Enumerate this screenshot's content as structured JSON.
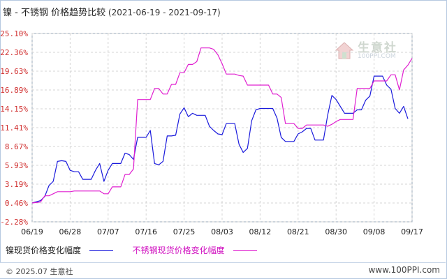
{
  "title": {
    "main": "镍 - 不锈钢 价格趋势比较",
    "range": "(2021-06-19 - 2021-09-17)"
  },
  "watermark": {
    "brand": "生意社",
    "url": "100PPI.COM"
  },
  "legend": [
    {
      "name": "镍现货价格变化幅度",
      "color": "#1a1adc"
    },
    {
      "name": "不锈钢现货价格变化幅度",
      "color": "#e020d0"
    }
  ],
  "footer": {
    "copyright": "© 2025.07 生意社",
    "url": "www.100PPI.com"
  },
  "chart_data": {
    "type": "line",
    "ylim": [
      -2.28,
      25.1
    ],
    "yticks": [
      "25.10%",
      "22.36%",
      "19.63%",
      "16.89%",
      "14.15%",
      "11.41%",
      "8.67%",
      "5.93%",
      "3.19%",
      "0.46%",
      "-2.28%"
    ],
    "ytick_values": [
      25.1,
      22.36,
      19.63,
      16.89,
      14.15,
      11.41,
      8.67,
      5.93,
      3.19,
      0.46,
      -2.28
    ],
    "xticks": [
      "06/19",
      "06/28",
      "07/07",
      "07/16",
      "07/25",
      "08/03",
      "08/12",
      "08/21",
      "08/30",
      "09/08",
      "09/17"
    ],
    "xlim_days": [
      0,
      90
    ],
    "grid": true,
    "series": [
      {
        "name": "镍现货价格变化幅度",
        "color": "#1a1adc",
        "points": [
          [
            0,
            0.46
          ],
          [
            2,
            0.8
          ],
          [
            3,
            1.4
          ],
          [
            4,
            3.0
          ],
          [
            5,
            3.6
          ],
          [
            6,
            6.5
          ],
          [
            7,
            6.6
          ],
          [
            8,
            6.5
          ],
          [
            9,
            5.2
          ],
          [
            10,
            5.0
          ],
          [
            11,
            5.0
          ],
          [
            12,
            3.9
          ],
          [
            13,
            3.9
          ],
          [
            14,
            3.9
          ],
          [
            15,
            5.2
          ],
          [
            16,
            6.2
          ],
          [
            17,
            3.6
          ],
          [
            18,
            5.2
          ],
          [
            19,
            6.2
          ],
          [
            20,
            6.2
          ],
          [
            21,
            6.2
          ],
          [
            22,
            7.7
          ],
          [
            23,
            7.5
          ],
          [
            24,
            6.8
          ],
          [
            25,
            10.0
          ],
          [
            26,
            10.0
          ],
          [
            27,
            10.0
          ],
          [
            28,
            11.0
          ],
          [
            29,
            6.2
          ],
          [
            30,
            6.0
          ],
          [
            31,
            6.5
          ],
          [
            32,
            10.2
          ],
          [
            33,
            10.2
          ],
          [
            34,
            10.3
          ],
          [
            35,
            13.4
          ],
          [
            36,
            14.3
          ],
          [
            37,
            13.0
          ],
          [
            38,
            13.5
          ],
          [
            39,
            13.2
          ],
          [
            40,
            13.2
          ],
          [
            41,
            13.2
          ],
          [
            42,
            11.6
          ],
          [
            43,
            11.0
          ],
          [
            44,
            10.5
          ],
          [
            45,
            10.4
          ],
          [
            46,
            12.0
          ],
          [
            47,
            12.0
          ],
          [
            48,
            12.0
          ],
          [
            49,
            9.0
          ],
          [
            50,
            7.8
          ],
          [
            51,
            8.4
          ],
          [
            52,
            12.4
          ],
          [
            53,
            14.0
          ],
          [
            54,
            14.2
          ],
          [
            55,
            14.2
          ],
          [
            56,
            14.2
          ],
          [
            57,
            14.2
          ],
          [
            58,
            12.8
          ],
          [
            59,
            10.0
          ],
          [
            60,
            9.4
          ],
          [
            61,
            9.4
          ],
          [
            62,
            9.4
          ],
          [
            63,
            10.5
          ],
          [
            64,
            10.8
          ],
          [
            65,
            11.3
          ],
          [
            66,
            11.3
          ],
          [
            67,
            9.6
          ],
          [
            68,
            9.6
          ],
          [
            69,
            9.6
          ],
          [
            70,
            13.2
          ],
          [
            71,
            16.1
          ],
          [
            72,
            15.5
          ],
          [
            73,
            14.5
          ],
          [
            74,
            13.5
          ],
          [
            75,
            13.5
          ],
          [
            76,
            13.5
          ],
          [
            77,
            14.0
          ],
          [
            78,
            14.0
          ],
          [
            79,
            15.4
          ],
          [
            80,
            16.0
          ],
          [
            81,
            18.9
          ],
          [
            82,
            18.9
          ],
          [
            83,
            18.9
          ],
          [
            84,
            17.6
          ],
          [
            85,
            17.0
          ],
          [
            86,
            14.2
          ],
          [
            87,
            13.5
          ],
          [
            88,
            14.5
          ],
          [
            89,
            12.7
          ]
        ]
      },
      {
        "name": "不锈钢现货价格变化幅度",
        "color": "#e020d0",
        "points": [
          [
            0,
            0.46
          ],
          [
            2,
            0.6
          ],
          [
            3,
            1.5
          ],
          [
            4,
            1.5
          ],
          [
            5,
            1.8
          ],
          [
            6,
            2.1
          ],
          [
            7,
            2.1
          ],
          [
            8,
            2.1
          ],
          [
            9,
            2.1
          ],
          [
            10,
            2.2
          ],
          [
            11,
            2.2
          ],
          [
            12,
            2.2
          ],
          [
            13,
            2.2
          ],
          [
            14,
            2.2
          ],
          [
            15,
            2.2
          ],
          [
            16,
            2.2
          ],
          [
            17,
            1.8
          ],
          [
            18,
            1.8
          ],
          [
            19,
            2.8
          ],
          [
            20,
            2.8
          ],
          [
            21,
            2.8
          ],
          [
            22,
            4.6
          ],
          [
            23,
            4.6
          ],
          [
            24,
            5.4
          ],
          [
            25,
            15.5
          ],
          [
            26,
            15.5
          ],
          [
            27,
            15.5
          ],
          [
            28,
            15.5
          ],
          [
            29,
            17.1
          ],
          [
            30,
            17.1
          ],
          [
            31,
            16.3
          ],
          [
            32,
            16.3
          ],
          [
            33,
            17.7
          ],
          [
            34,
            17.7
          ],
          [
            35,
            19.4
          ],
          [
            36,
            19.4
          ],
          [
            37,
            20.6
          ],
          [
            38,
            20.6
          ],
          [
            39,
            21.0
          ],
          [
            40,
            23.0
          ],
          [
            41,
            23.0
          ],
          [
            42,
            23.0
          ],
          [
            43,
            22.8
          ],
          [
            44,
            22.0
          ],
          [
            45,
            20.7
          ],
          [
            46,
            19.2
          ],
          [
            47,
            19.2
          ],
          [
            48,
            19.2
          ],
          [
            49,
            19.0
          ],
          [
            50,
            18.9
          ],
          [
            51,
            17.6
          ],
          [
            52,
            17.6
          ],
          [
            53,
            17.6
          ],
          [
            54,
            17.6
          ],
          [
            55,
            17.6
          ],
          [
            56,
            17.6
          ],
          [
            57,
            16.3
          ],
          [
            58,
            16.3
          ],
          [
            59,
            15.8
          ],
          [
            60,
            12.0
          ],
          [
            61,
            12.0
          ],
          [
            62,
            12.0
          ],
          [
            63,
            11.3
          ],
          [
            64,
            11.3
          ],
          [
            65,
            11.8
          ],
          [
            66,
            11.8
          ],
          [
            67,
            11.8
          ],
          [
            68,
            11.8
          ],
          [
            69,
            11.8
          ],
          [
            70,
            11.6
          ],
          [
            71,
            11.9
          ],
          [
            72,
            12.3
          ],
          [
            73,
            12.6
          ],
          [
            74,
            12.6
          ],
          [
            75,
            12.6
          ],
          [
            76,
            12.6
          ],
          [
            77,
            17.1
          ],
          [
            78,
            17.1
          ],
          [
            79,
            17.1
          ],
          [
            80,
            17.1
          ],
          [
            81,
            18.2
          ],
          [
            82,
            18.2
          ],
          [
            83,
            18.2
          ],
          [
            84,
            18.2
          ],
          [
            85,
            19.1
          ],
          [
            86,
            19.1
          ],
          [
            87,
            16.9
          ],
          [
            88,
            19.8
          ],
          [
            89,
            20.5
          ],
          [
            90,
            21.5
          ]
        ]
      }
    ]
  }
}
